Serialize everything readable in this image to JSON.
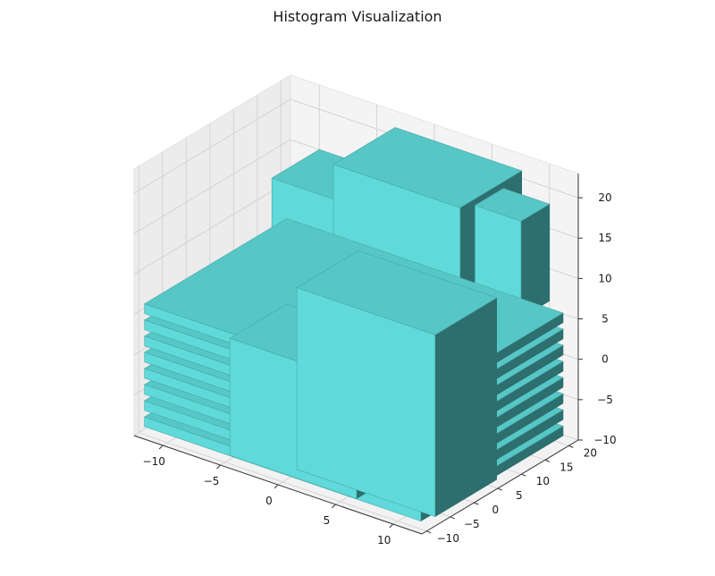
{
  "chart_data": {
    "type": "bar3d",
    "title": "Histogram Visualization",
    "xlabel": "",
    "ylabel": "",
    "zlabel": "",
    "xlim": [
      -12.5,
      12.5
    ],
    "ylim": [
      -11,
      22
    ],
    "zlim": [
      -10,
      23
    ],
    "x_ticks": [
      -10,
      -5,
      0,
      5,
      10
    ],
    "y_ticks": [
      -10,
      -5,
      0,
      5,
      10,
      15,
      20
    ],
    "z_ticks": [
      -10,
      -5,
      0,
      5,
      10,
      15,
      20
    ],
    "grid": true,
    "colors": {
      "face": "#5fd9d9",
      "top": "#57c6c6",
      "side": "#2d6e6e",
      "edge": "#4aa8a8"
    },
    "bars": [
      {
        "x": [
          -12,
          12
        ],
        "y": [
          -10,
          20
        ],
        "z": [
          -9.0,
          -7.8
        ]
      },
      {
        "x": [
          -12,
          12
        ],
        "y": [
          -10,
          20
        ],
        "z": [
          -7.0,
          -5.8
        ]
      },
      {
        "x": [
          -12,
          12
        ],
        "y": [
          -10,
          20
        ],
        "z": [
          -5.0,
          -3.8
        ]
      },
      {
        "x": [
          -12,
          12
        ],
        "y": [
          -10,
          20
        ],
        "z": [
          -3.0,
          -1.8
        ]
      },
      {
        "x": [
          -12,
          12
        ],
        "y": [
          -10,
          20
        ],
        "z": [
          -1.0,
          0.2
        ]
      },
      {
        "x": [
          -12,
          12
        ],
        "y": [
          -10,
          20
        ],
        "z": [
          1.0,
          2.2
        ]
      },
      {
        "x": [
          -12,
          12
        ],
        "y": [
          -10,
          20
        ],
        "z": [
          3.0,
          4.2
        ]
      },
      {
        "x": [
          -12,
          12
        ],
        "y": [
          -10,
          20
        ],
        "z": [
          5.0,
          6.2
        ]
      },
      {
        "x": [
          -10,
          4
        ],
        "y": [
          12,
          22
        ],
        "z": [
          5.0,
          15.0
        ]
      },
      {
        "x": [
          -3,
          8
        ],
        "y": [
          8,
          21
        ],
        "z": [
          6.0,
          21.5
        ]
      },
      {
        "x": [
          6,
          10
        ],
        "y": [
          16,
          22
        ],
        "z": [
          6.0,
          18.0
        ]
      },
      {
        "x": [
          0,
          12
        ],
        "y": [
          -7,
          6
        ],
        "z": [
          -9.5,
          13.0
        ]
      },
      {
        "x": [
          -5,
          6
        ],
        "y": [
          -9,
          3
        ],
        "z": [
          -9.5,
          5.0
        ]
      }
    ]
  }
}
